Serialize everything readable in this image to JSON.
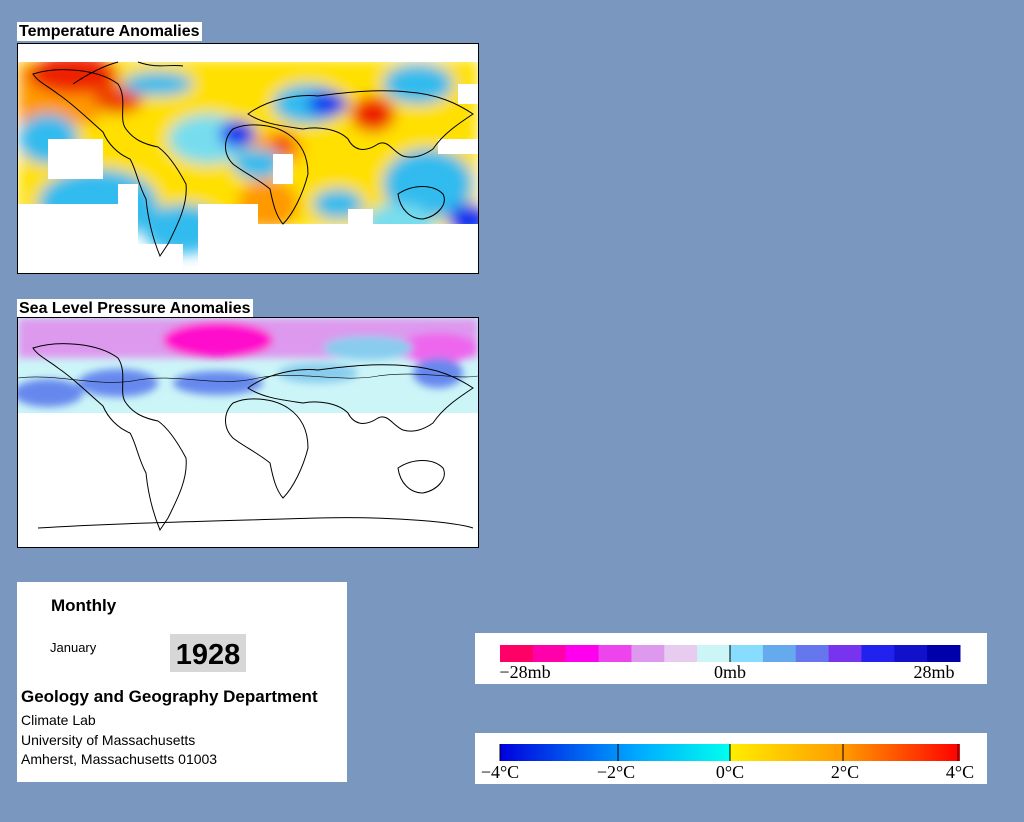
{
  "panels": {
    "temperature_title": "Temperature Anomalies",
    "pressure_title": "Sea Level Pressure Anomalies"
  },
  "info": {
    "period": "Monthly",
    "month": "January",
    "year": "1928",
    "department": "Geology and Geography Department",
    "lab": "Climate Lab",
    "university": "University of Massachusetts",
    "address": "Amherst, Massachusetts 01003"
  },
  "pressure_legend": {
    "labels": [
      "−28mb",
      "0mb",
      "28mb"
    ],
    "colors": [
      "#ff0066",
      "#ff00aa",
      "#ff00ee",
      "#ee44ee",
      "#dd99ee",
      "#e8ccf0",
      "#ccf5f8",
      "#88ddff",
      "#66aaee",
      "#6677ee",
      "#7733ee",
      "#2222ee",
      "#1111cc",
      "#0000aa"
    ]
  },
  "temperature_legend": {
    "labels": [
      "−4°C",
      "−2°C",
      "0°C",
      "2°C",
      "4°C"
    ],
    "colors": {
      "cold_end": "#0000dd",
      "cool": "#00aaff",
      "zero": "#00ffee",
      "warm": "#ffee00",
      "orange": "#ff9900",
      "hot_end": "#ff0000"
    }
  },
  "map_colors": {
    "cold": "#1133ee",
    "cool": "#33bbee",
    "neutral": "#77ddee",
    "warm": "#ffe000",
    "orange": "#ff9900",
    "hot": "#ee2200",
    "pressure_magenta": "#ff11cc",
    "pressure_lilac": "#dd99ee",
    "pressure_light": "#ccf5f8",
    "pressure_blue": "#6688ee"
  }
}
